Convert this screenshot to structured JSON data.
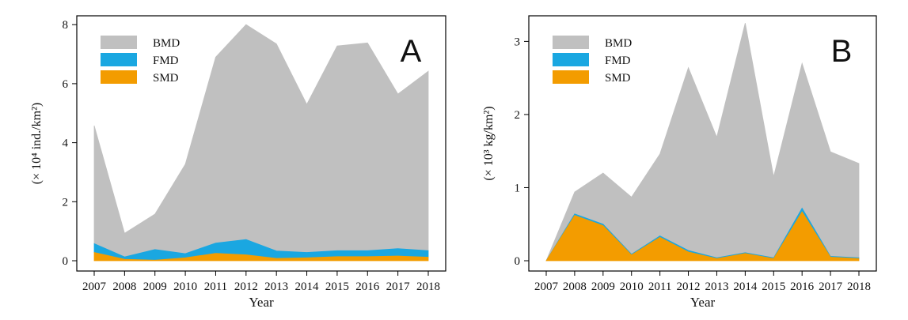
{
  "colors": {
    "BMD": "#c0c0c0",
    "FMD": "#1aa7e1",
    "SMD": "#f39c00",
    "FMD_edge": "#1aa7e1"
  },
  "chart_data": [
    {
      "type": "area",
      "stacked": true,
      "panel_label": "A",
      "xlabel": "Year",
      "ylabel": "(× 10⁴ ind./km²)",
      "x": [
        2007,
        2008,
        2009,
        2010,
        2011,
        2012,
        2013,
        2014,
        2015,
        2016,
        2017,
        2018
      ],
      "ylim": [
        0,
        8.3
      ],
      "yticks": [
        0,
        2,
        4,
        6,
        8
      ],
      "legend": "top-left",
      "series": [
        {
          "name": "SMD",
          "values": [
            0.28,
            0.05,
            0.02,
            0.1,
            0.25,
            0.2,
            0.08,
            0.1,
            0.14,
            0.14,
            0.16,
            0.12
          ]
        },
        {
          "name": "FMD",
          "values": [
            0.3,
            0.08,
            0.36,
            0.14,
            0.35,
            0.52,
            0.25,
            0.18,
            0.2,
            0.2,
            0.25,
            0.22
          ]
        },
        {
          "name": "BMD",
          "values": [
            4.0,
            0.8,
            1.2,
            3.03,
            6.3,
            7.28,
            7.02,
            5.02,
            6.94,
            7.04,
            5.24,
            6.08
          ]
        }
      ]
    },
    {
      "type": "area",
      "stacked": true,
      "panel_label": "B",
      "xlabel": "Year",
      "ylabel": "(× 10³ kg/km²)",
      "x": [
        2007,
        2008,
        2009,
        2010,
        2011,
        2012,
        2013,
        2014,
        2015,
        2016,
        2017,
        2018
      ],
      "ylim": [
        0,
        3.35
      ],
      "yticks": [
        0,
        1,
        2,
        3
      ],
      "legend": "top-left",
      "series": [
        {
          "name": "SMD",
          "values": [
            0.0,
            0.62,
            0.48,
            0.08,
            0.32,
            0.12,
            0.03,
            0.1,
            0.03,
            0.67,
            0.05,
            0.03
          ]
        },
        {
          "name": "FMD",
          "values": [
            0.0,
            0.02,
            0.02,
            0.01,
            0.02,
            0.02,
            0.01,
            0.01,
            0.01,
            0.05,
            0.01,
            0.01
          ]
        },
        {
          "name": "BMD",
          "values": [
            0.0,
            0.3,
            0.7,
            0.78,
            1.12,
            2.5,
            1.65,
            3.14,
            1.11,
            1.98,
            1.43,
            1.29
          ]
        }
      ]
    }
  ]
}
